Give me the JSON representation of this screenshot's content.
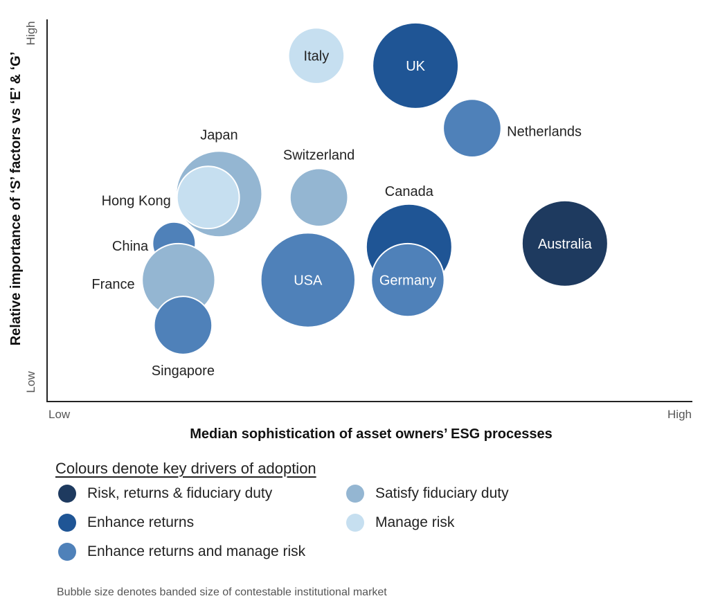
{
  "chart_data": {
    "type": "scatter",
    "subtype": "bubble",
    "xlabel": "Median sophistication of asset owners’ ESG processes",
    "ylabel": "Relative importance of ‘S’ factors vs ‘E’ & ‘G’",
    "x_low_label": "Low",
    "x_high_label": "High",
    "y_low_label": "Low",
    "y_high_label": "High",
    "xlim": [
      0,
      10
    ],
    "ylim": [
      0,
      10
    ],
    "grid": false,
    "legend": {
      "title": "Colours denote key drivers of adoption",
      "placement": "bottom",
      "entries": [
        {
          "key": "rrf",
          "label": "Risk, returns & fiduciary duty",
          "color": "#1e3a5f"
        },
        {
          "key": "er",
          "label": "Enhance returns",
          "color": "#1f5595"
        },
        {
          "key": "erm",
          "label": "Enhance returns and manage risk",
          "color": "#4f81b9"
        },
        {
          "key": "sfd",
          "label": "Satisfy fiduciary duty",
          "color": "#94b6d2"
        },
        {
          "key": "mr",
          "label": "Manage risk",
          "color": "#c6dff0"
        }
      ]
    },
    "footnote": "Bubble size denotes banded size of contestable institutional market",
    "points": [
      {
        "name": "Italy",
        "x": 4.16,
        "y": 9.08,
        "size": 1.3,
        "driver": "mr",
        "label_inside": true
      },
      {
        "name": "UK",
        "x": 5.7,
        "y": 8.82,
        "size": 2.0,
        "driver": "er",
        "label_inside": true
      },
      {
        "name": "Netherlands",
        "x": 6.58,
        "y": 7.18,
        "size": 1.35,
        "driver": "erm",
        "label_inside": false
      },
      {
        "name": "Japan",
        "x": 2.65,
        "y": 5.45,
        "size": 2.0,
        "driver": "sfd",
        "label_inside": false
      },
      {
        "name": "Hong Kong",
        "x": 2.48,
        "y": 5.36,
        "size": 1.45,
        "driver": "mr",
        "label_inside": false
      },
      {
        "name": "Switzerland",
        "x": 4.2,
        "y": 5.36,
        "size": 1.35,
        "driver": "sfd",
        "label_inside": false
      },
      {
        "name": "Canada",
        "x": 5.6,
        "y": 4.06,
        "size": 2.0,
        "driver": "er",
        "label_inside": false
      },
      {
        "name": "Australia",
        "x": 8.02,
        "y": 4.15,
        "size": 2.0,
        "driver": "rrf",
        "label_inside": true
      },
      {
        "name": "China",
        "x": 1.95,
        "y": 4.15,
        "size": 1.0,
        "driver": "erm",
        "label_inside": false
      },
      {
        "name": "France",
        "x": 2.02,
        "y": 3.19,
        "size": 1.7,
        "driver": "sfd",
        "label_inside": false
      },
      {
        "name": "USA",
        "x": 4.03,
        "y": 3.19,
        "size": 2.2,
        "driver": "erm",
        "label_inside": true
      },
      {
        "name": "Germany",
        "x": 5.58,
        "y": 3.19,
        "size": 1.7,
        "driver": "erm",
        "label_inside": true
      },
      {
        "name": "Singapore",
        "x": 2.09,
        "y": 2.0,
        "size": 1.35,
        "driver": "erm",
        "label_inside": false
      }
    ]
  }
}
